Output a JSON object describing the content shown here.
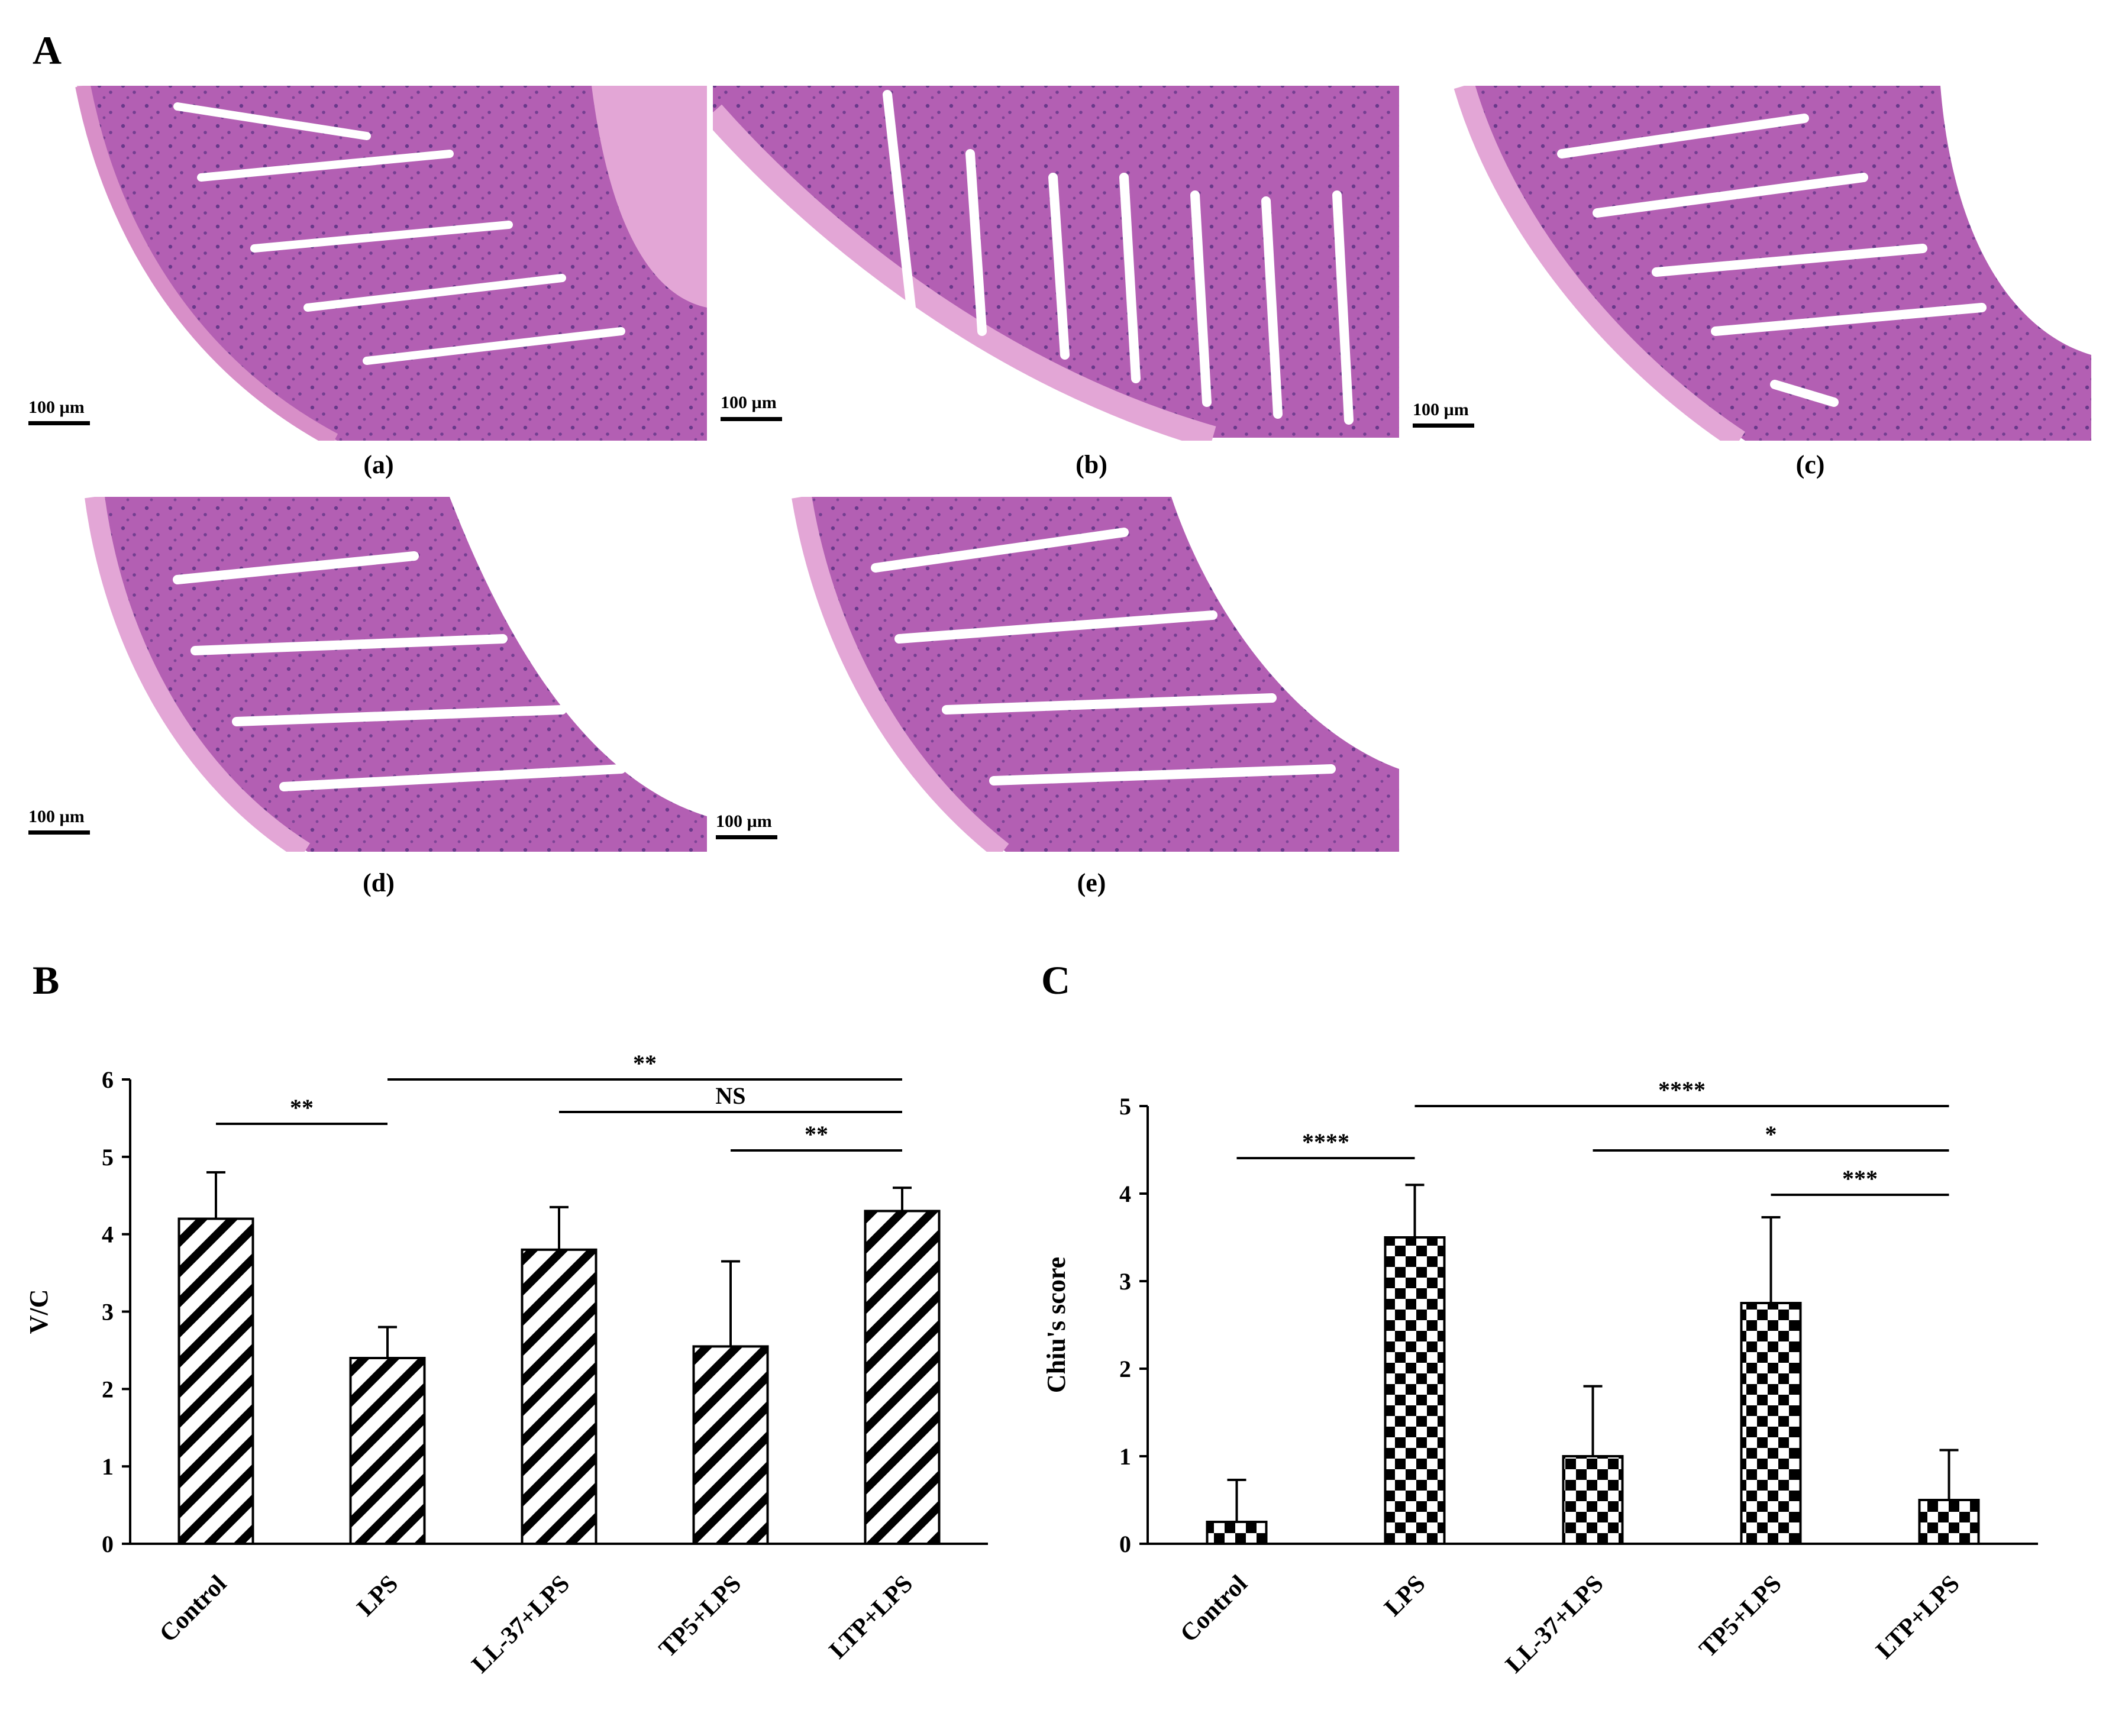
{
  "panel_labels": {
    "a": "A",
    "b": "B",
    "c": "C"
  },
  "micrographs": [
    {
      "caption": "(a)",
      "scale_bar": "100 µm"
    },
    {
      "caption": "(b)",
      "scale_bar": "100 µm"
    },
    {
      "caption": "(c)",
      "scale_bar": "100 µm"
    },
    {
      "caption": "(d)",
      "scale_bar": "100 µm"
    },
    {
      "caption": "(e)",
      "scale_bar": "100 µm"
    }
  ],
  "colors": {
    "tissue": "#b35fb3",
    "tissue_light": "#e3a6d6",
    "stroma": "#eab3dd",
    "nuclei": "#4a2a7a",
    "background": "#ffffff",
    "ink": "#000000"
  },
  "chart_data": [
    {
      "type": "bar",
      "panel": "B",
      "categories": [
        "Control",
        "LPS",
        "LL-37+LPS",
        "TP5+LPS",
        "LTP+LPS"
      ],
      "values": [
        4.2,
        2.4,
        3.8,
        2.55,
        4.3
      ],
      "errors": [
        0.6,
        0.4,
        0.55,
        1.1,
        0.3
      ],
      "ylabel": "V/C",
      "ylim": [
        0,
        6
      ],
      "yticks": [
        "0",
        "1",
        "2",
        "3",
        "4",
        "5",
        "6"
      ],
      "pattern": "diagonal-hatch",
      "significance": [
        {
          "from": 0,
          "to": 1,
          "label": "**"
        },
        {
          "from": 1,
          "to": 4,
          "label": "**"
        },
        {
          "from": 2,
          "to": 4,
          "label": "NS"
        },
        {
          "from": 3,
          "to": 4,
          "label": "**"
        }
      ]
    },
    {
      "type": "bar",
      "panel": "C",
      "categories": [
        "Control",
        "LPS",
        "LL-37+LPS",
        "TP5+LPS",
        "LTP+LPS"
      ],
      "values": [
        0.25,
        3.5,
        1.0,
        2.75,
        0.5
      ],
      "errors": [
        0.48,
        0.6,
        0.8,
        0.98,
        0.57
      ],
      "ylabel": "Chiu's score",
      "ylim": [
        0,
        5
      ],
      "yticks": [
        "0",
        "1",
        "2",
        "3",
        "4",
        "5"
      ],
      "pattern": "checkerboard",
      "significance": [
        {
          "from": 0,
          "to": 1,
          "label": "****"
        },
        {
          "from": 1,
          "to": 4,
          "label": "****"
        },
        {
          "from": 2,
          "to": 4,
          "label": "*"
        },
        {
          "from": 3,
          "to": 4,
          "label": "***"
        }
      ]
    }
  ]
}
